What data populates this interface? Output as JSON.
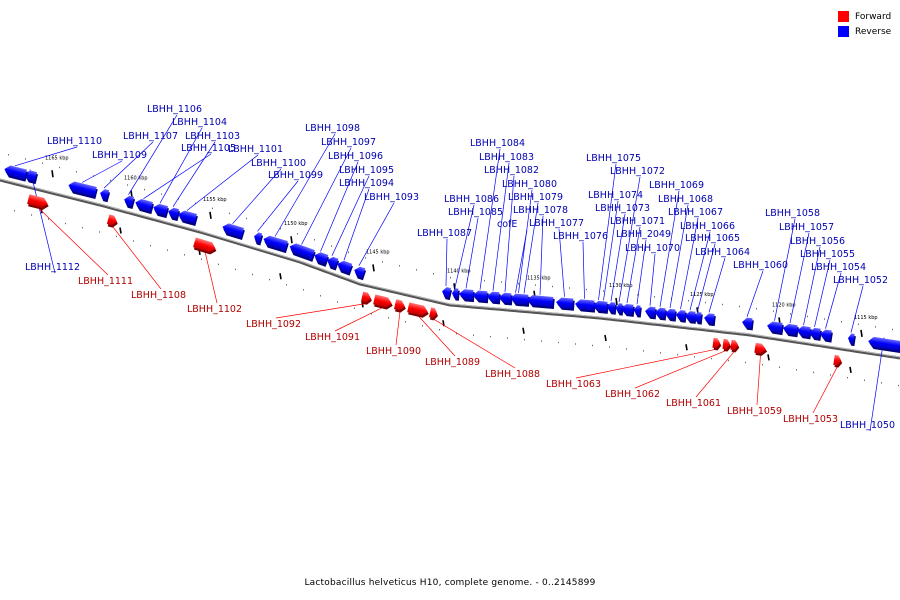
{
  "caption": "Lactobacillus helveticus H10, complete genome. - 0..2145899",
  "colors": {
    "forward": "#ff0000",
    "reverse": "#0000ff",
    "forward_label": "#b00000",
    "reverse_label": "#0000b0",
    "axis": "#888888"
  },
  "legend": {
    "forward": {
      "label": "Forward",
      "color": "#ff0000"
    },
    "reverse": {
      "label": "Reverse",
      "color": "#0000ff"
    }
  },
  "ticks": [
    "1165 kbp",
    "1160 kbp",
    "1155 kbp",
    "1150 kbp",
    "1145 kbp",
    "1140 kbp",
    "1135 kbp",
    "1130 kbp",
    "1125 kbp",
    "1120 kbp",
    "1115 kbp"
  ],
  "genes": [
    {
      "name": "LBHH_1112",
      "strand": "reverse"
    },
    {
      "name": "LBHH_1111",
      "strand": "forward"
    },
    {
      "name": "LBHH_1110",
      "strand": "reverse"
    },
    {
      "name": "LBHH_1109",
      "strand": "reverse"
    },
    {
      "name": "LBHH_1108",
      "strand": "forward"
    },
    {
      "name": "LBHH_1107",
      "strand": "reverse"
    },
    {
      "name": "LBHH_1106",
      "strand": "reverse"
    },
    {
      "name": "LBHH_1105",
      "strand": "reverse"
    },
    {
      "name": "LBHH_1104",
      "strand": "reverse"
    },
    {
      "name": "LBHH_1103",
      "strand": "reverse"
    },
    {
      "name": "LBHH_1102",
      "strand": "forward"
    },
    {
      "name": "LBHH_1101",
      "strand": "reverse"
    },
    {
      "name": "LBHH_1100",
      "strand": "reverse"
    },
    {
      "name": "LBHH_1099",
      "strand": "reverse"
    },
    {
      "name": "LBHH_1098",
      "strand": "reverse"
    },
    {
      "name": "LBHH_1097",
      "strand": "reverse"
    },
    {
      "name": "LBHH_1096",
      "strand": "reverse"
    },
    {
      "name": "LBHH_1095",
      "strand": "reverse"
    },
    {
      "name": "LBHH_1094",
      "strand": "reverse"
    },
    {
      "name": "LBHH_1093",
      "strand": "reverse"
    },
    {
      "name": "LBHH_1092",
      "strand": "forward"
    },
    {
      "name": "LBHH_1091",
      "strand": "forward"
    },
    {
      "name": "LBHH_1090",
      "strand": "forward"
    },
    {
      "name": "LBHH_1089",
      "strand": "forward"
    },
    {
      "name": "LBHH_1088",
      "strand": "forward"
    },
    {
      "name": "LBHH_1087",
      "strand": "reverse"
    },
    {
      "name": "LBHH_1086",
      "strand": "reverse"
    },
    {
      "name": "LBHH_1085",
      "strand": "reverse"
    },
    {
      "name": "LBHH_1084",
      "strand": "reverse"
    },
    {
      "name": "LBHH_1083",
      "strand": "reverse"
    },
    {
      "name": "LBHH_1082",
      "strand": "reverse"
    },
    {
      "name": "cofE",
      "strand": "reverse"
    },
    {
      "name": "LBHH_1080",
      "strand": "reverse"
    },
    {
      "name": "LBHH_1079",
      "strand": "reverse"
    },
    {
      "name": "LBHH_1078",
      "strand": "reverse"
    },
    {
      "name": "LBHH_1077",
      "strand": "reverse"
    },
    {
      "name": "LBHH_1076",
      "strand": "reverse"
    },
    {
      "name": "LBHH_1075",
      "strand": "reverse"
    },
    {
      "name": "LBHH_1074",
      "strand": "reverse"
    },
    {
      "name": "LBHH_1073",
      "strand": "reverse"
    },
    {
      "name": "LBHH_1072",
      "strand": "reverse"
    },
    {
      "name": "LBHH_1071",
      "strand": "reverse"
    },
    {
      "name": "LBHH_2049",
      "strand": "reverse"
    },
    {
      "name": "LBHH_1070",
      "strand": "reverse"
    },
    {
      "name": "LBHH_1069",
      "strand": "reverse"
    },
    {
      "name": "LBHH_1068",
      "strand": "reverse"
    },
    {
      "name": "LBHH_1067",
      "strand": "reverse"
    },
    {
      "name": "LBHH_1066",
      "strand": "reverse"
    },
    {
      "name": "LBHH_1065",
      "strand": "reverse"
    },
    {
      "name": "LBHH_1064",
      "strand": "reverse"
    },
    {
      "name": "LBHH_1063",
      "strand": "forward"
    },
    {
      "name": "LBHH_1062",
      "strand": "forward"
    },
    {
      "name": "LBHH_1061",
      "strand": "forward"
    },
    {
      "name": "LBHH_1060",
      "strand": "reverse"
    },
    {
      "name": "LBHH_1059",
      "strand": "forward"
    },
    {
      "name": "LBHH_1058",
      "strand": "reverse"
    },
    {
      "name": "LBHH_1057",
      "strand": "reverse"
    },
    {
      "name": "LBHH_1056",
      "strand": "reverse"
    },
    {
      "name": "LBHH_1055",
      "strand": "reverse"
    },
    {
      "name": "LBHH_1054",
      "strand": "reverse"
    },
    {
      "name": "LBHH_1053",
      "strand": "forward"
    },
    {
      "name": "LBHH_1052",
      "strand": "reverse"
    },
    {
      "name": "LBHH_1050",
      "strand": "reverse"
    }
  ]
}
